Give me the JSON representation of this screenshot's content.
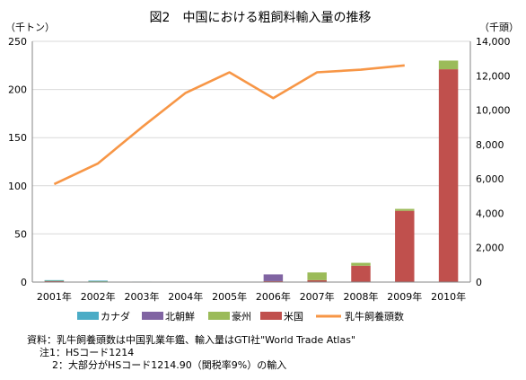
{
  "chart_data": {
    "type": "bar",
    "title": "図2　中国における粗飼料輸入量の推移",
    "left_unit": "（千トン）",
    "right_unit": "（千頭）",
    "categories": [
      "2001年",
      "2002年",
      "2003年",
      "2004年",
      "2005年",
      "2006年",
      "2007年",
      "2008年",
      "2009年",
      "2010年"
    ],
    "ylim": [
      0,
      250
    ],
    "yticks": [
      "0",
      "50",
      "100",
      "150",
      "200",
      "250"
    ],
    "y2lim": [
      0,
      14000
    ],
    "y2ticks": [
      "0",
      "2,000",
      "4,000",
      "6,000",
      "8,000",
      "10,000",
      "12,000",
      "14,000"
    ],
    "stacked": true,
    "series": [
      {
        "name": "カナダ",
        "kind": "bar",
        "color": "#4bacc6",
        "values": [
          0.3,
          0.3,
          0.5,
          0,
          0,
          0,
          0,
          0,
          0,
          0
        ]
      },
      {
        "name": "北朝鮮",
        "kind": "bar",
        "color": "#8064a2",
        "values": [
          0,
          0,
          0,
          0,
          0,
          7,
          0,
          0,
          0,
          0
        ]
      },
      {
        "name": "豪州",
        "kind": "bar",
        "color": "#9bbb59",
        "values": [
          0.5,
          0.5,
          0,
          0,
          0,
          0,
          8,
          3,
          2,
          9
        ]
      },
      {
        "name": "米国",
        "kind": "bar",
        "color": "#c0504d",
        "values": [
          1.2,
          0.7,
          0,
          0,
          0,
          1,
          2,
          17,
          74,
          221
        ]
      },
      {
        "name": "乳牛飼養頭数",
        "kind": "line",
        "axis": "right",
        "color": "#f79646",
        "values": [
          5700,
          6900,
          9000,
          11000,
          12200,
          10700,
          12200,
          12350,
          12600,
          null
        ]
      }
    ],
    "legend_position": "bottom",
    "grid": true
  },
  "notes": [
    "資料：乳牛飼養頭数は中国乳業年鑑、輸入量はGTI社\"World Trade Atlas\"",
    "注1：HSコード1214",
    "2：大部分がHSコード1214.90（関税率9%）の輸入"
  ]
}
